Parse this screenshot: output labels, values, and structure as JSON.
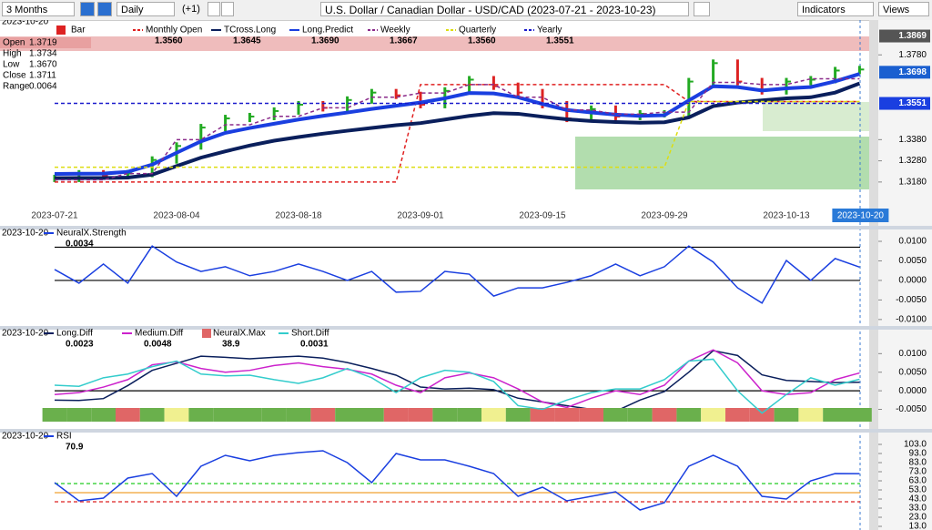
{
  "toolbar": {
    "period": "3 Months",
    "interval": "Daily",
    "step": "(+1)",
    "title": "U.S. Dollar / Canadian Dollar - USD/CAD (2023-07-21 - 2023-10-23)",
    "indicators": "Indicators",
    "views": "Views"
  },
  "chart_data": [
    {
      "type": "line",
      "date": "2023-10-20",
      "categories": [
        "2023-07-21",
        null,
        null,
        null,
        null,
        "2023-08-04",
        null,
        null,
        null,
        null,
        "2023-08-18",
        null,
        null,
        null,
        null,
        "2023-09-01",
        null,
        null,
        null,
        null,
        "2023-09-15",
        null,
        null,
        null,
        null,
        "2023-09-29",
        null,
        null,
        null,
        null,
        "2023-10-13",
        null,
        null,
        "2023-10-20"
      ],
      "info": [
        {
          "label": "Open",
          "value": "1.3719"
        },
        {
          "label": "High",
          "value": "1.3734"
        },
        {
          "label": "Low",
          "value": "1.3670"
        },
        {
          "label": "Close",
          "value": "1.3711"
        },
        {
          "label": "Range",
          "value": "0.0064"
        }
      ],
      "bars": {
        "name": "Bar",
        "up_color": "#22aa22",
        "down_color": "#dd2222",
        "values": [
          1.3197,
          1.3219,
          1.321,
          1.322,
          1.3284,
          1.335,
          1.3437,
          1.348,
          1.3489,
          1.3515,
          1.3545,
          1.353,
          1.3567,
          1.3602,
          1.3589,
          1.3545,
          1.361,
          1.3663,
          1.3632,
          1.3602,
          1.3545,
          1.348,
          1.3524,
          1.3489,
          1.3502,
          1.3502,
          1.3654,
          1.3741,
          1.3654,
          1.361,
          1.3654,
          1.3663,
          1.3706,
          1.3711
        ]
      },
      "series": [
        {
          "name": "Monthly Open",
          "label_value": "1.3560",
          "color": "#e02020",
          "dashed": true,
          "width": 1.5,
          "values": [
            1.318,
            1.318,
            1.318,
            1.318,
            1.318,
            1.318,
            1.318,
            1.318,
            1.318,
            1.318,
            1.318,
            1.318,
            1.318,
            1.318,
            1.318,
            1.364,
            1.364,
            1.364,
            1.364,
            1.364,
            1.364,
            1.364,
            1.364,
            1.364,
            1.364,
            1.364,
            1.356,
            1.356,
            1.356,
            1.356,
            1.356,
            1.356,
            1.356,
            1.356
          ]
        },
        {
          "name": "TCross.Long",
          "label_value": "1.3645",
          "color": "#0a1f5c",
          "dashed": false,
          "width": 4,
          "values": [
            1.3198,
            1.3199,
            1.3199,
            1.3201,
            1.3215,
            1.3255,
            1.3295,
            1.3325,
            1.3352,
            1.3375,
            1.3392,
            1.3408,
            1.3422,
            1.3435,
            1.3448,
            1.3458,
            1.3475,
            1.3492,
            1.3505,
            1.3502,
            1.3488,
            1.3476,
            1.3468,
            1.3463,
            1.346,
            1.3462,
            1.3485,
            1.3538,
            1.3555,
            1.3565,
            1.3575,
            1.358,
            1.3602,
            1.3645
          ]
        },
        {
          "name": "Long.Predict",
          "label_value": "1.3690",
          "color": "#1a3fe0",
          "dashed": false,
          "width": 4,
          "values": [
            1.3218,
            1.3219,
            1.322,
            1.3228,
            1.3262,
            1.3318,
            1.3372,
            1.3412,
            1.3435,
            1.3455,
            1.3475,
            1.3492,
            1.3508,
            1.3525,
            1.354,
            1.3555,
            1.3575,
            1.36,
            1.3598,
            1.358,
            1.3548,
            1.352,
            1.3508,
            1.3498,
            1.3492,
            1.3495,
            1.3565,
            1.3632,
            1.3628,
            1.3612,
            1.3622,
            1.3628,
            1.3655,
            1.369
          ]
        },
        {
          "name": "Weekly",
          "label_value": "1.3667",
          "color": "#8a2a8a",
          "dashed": true,
          "width": 1.5,
          "values": [
            1.319,
            1.319,
            1.319,
            1.322,
            1.322,
            1.338,
            1.338,
            1.345,
            1.345,
            1.349,
            1.349,
            1.353,
            1.353,
            1.358,
            1.358,
            1.36,
            1.36,
            1.364,
            1.364,
            1.358,
            1.358,
            1.352,
            1.352,
            1.35,
            1.35,
            1.351,
            1.351,
            1.365,
            1.365,
            1.364,
            1.364,
            1.3667,
            1.3667,
            1.3667
          ]
        },
        {
          "name": "Quarterly",
          "label_value": "1.3560",
          "color": "#dddd10",
          "dashed": true,
          "width": 1.5,
          "values": [
            1.325,
            1.325,
            1.325,
            1.325,
            1.325,
            1.325,
            1.325,
            1.325,
            1.325,
            1.325,
            1.325,
            1.325,
            1.325,
            1.325,
            1.325,
            1.325,
            1.325,
            1.325,
            1.325,
            1.325,
            1.325,
            1.325,
            1.325,
            1.325,
            1.325,
            1.325,
            1.356,
            1.356,
            1.356,
            1.356,
            1.356,
            1.356,
            1.356,
            1.356
          ]
        },
        {
          "name": "Yearly",
          "label_value": "1.3551",
          "color": "#1a1acc",
          "dashed": true,
          "width": 1.5,
          "values": [
            1.3551,
            1.3551,
            1.3551,
            1.3551,
            1.3551,
            1.3551,
            1.3551,
            1.3551,
            1.3551,
            1.3551,
            1.3551,
            1.3551,
            1.3551,
            1.3551,
            1.3551,
            1.3551,
            1.3551,
            1.3551,
            1.3551,
            1.3551,
            1.3551,
            1.3551,
            1.3551,
            1.3551,
            1.3551,
            1.3551,
            1.3551,
            1.3551,
            1.3551,
            1.3551,
            1.3551,
            1.3551,
            1.3551,
            1.3551
          ]
        }
      ],
      "ylim": [
        1.3115,
        1.391
      ],
      "yticks": [
        {
          "value": 1.318,
          "label": "1.3180"
        },
        {
          "value": 1.328,
          "label": "1.3280"
        },
        {
          "value": 1.338,
          "label": "1.3380"
        },
        {
          "value": 1.378,
          "label": "1.3780"
        }
      ],
      "price_labels": [
        {
          "value": 1.3869,
          "label": "1.3869",
          "color": "#555555"
        },
        {
          "value": 1.3698,
          "label": "1.3698",
          "color": "#1a5fd0"
        },
        {
          "value": 1.3551,
          "label": "1.3551",
          "color": "#1a3fe0"
        }
      ]
    },
    {
      "type": "line",
      "date": "2023-10-20",
      "series": [
        {
          "name": "NeuralX.Strength",
          "label_value": "0.0034",
          "color": "#1a3fe0",
          "width": 1.5,
          "values": [
            0.0028,
            -0.0007,
            0.0042,
            -0.0007,
            0.0088,
            0.0047,
            0.0023,
            0.0035,
            0.0012,
            0.0023,
            0.0042,
            0.0023,
            0,
            0.0023,
            -0.003,
            -0.0028,
            0.0023,
            0.0016,
            -0.004,
            -0.0019,
            -0.0019,
            -0.0005,
            0.0012,
            0.0042,
            0.0012,
            0.0035,
            0.0088,
            0.0047,
            -0.0019,
            -0.0058,
            0.0051,
            0,
            0.0056,
            0.0034
          ]
        }
      ],
      "levels": [
        {
          "value": 0.0085,
          "color": "#000000"
        },
        {
          "value": 0,
          "color": "#000000"
        }
      ],
      "ylim": [
        -0.0112,
        0.0107
      ],
      "yticks": [
        {
          "value": 0.01,
          "label": "0.0100"
        },
        {
          "value": 0.005,
          "label": "0.0050"
        },
        {
          "value": 0,
          "label": "0.0000"
        },
        {
          "value": -0.005,
          "label": "-0.0050"
        },
        {
          "value": -0.01,
          "label": "-0.0100"
        }
      ]
    },
    {
      "type": "line",
      "date": "2023-10-20",
      "series": [
        {
          "name": "Long.Diff",
          "label_value": "0.0023",
          "color": "#0a1f5c",
          "width": 1.5,
          "values": [
            -0.0025,
            -0.0026,
            -0.0021,
            0.0014,
            0.0055,
            0.0074,
            0.0093,
            0.009,
            0.0086,
            0.009,
            0.0093,
            0.0088,
            0.0076,
            0.006,
            0.0042,
            0.001,
            0.0005,
            0.0007,
            0.0003,
            -0.002,
            -0.003,
            -0.004,
            -0.005,
            -0.0055,
            -0.0025,
            -0.0002,
            0.005,
            0.0108,
            0.0095,
            0.0043,
            0.0028,
            0.0025,
            0.0022,
            0.0023
          ]
        },
        {
          "name": "Medium.Diff",
          "label_value": "0.0048",
          "color": "#cc22cc",
          "width": 1.5,
          "values": [
            -0.001,
            -0.0005,
            0.001,
            0.003,
            0.007,
            0.0078,
            0.006,
            0.005,
            0.0055,
            0.0068,
            0.0075,
            0.0065,
            0.0058,
            0.0045,
            0.0015,
            -0.0005,
            0.0035,
            0.0048,
            0.0035,
            0.0005,
            -0.003,
            -0.0045,
            -0.002,
            0,
            -0.001,
            0.0015,
            0.008,
            0.011,
            0.0075,
            0,
            -0.001,
            -0.0005,
            0.003,
            0.0048
          ]
        },
        {
          "name": "NeuralX.Max",
          "label_value": "38.9",
          "strip_colors": [
            "#6ab04c",
            "#6ab04c",
            "#6ab04c",
            "#e06666",
            "#6ab04c",
            "#f0f090",
            "#6ab04c",
            "#6ab04c",
            "#6ab04c",
            "#6ab04c",
            "#6ab04c",
            "#e06666",
            "#6ab04c",
            "#6ab04c",
            "#e06666",
            "#e06666",
            "#6ab04c",
            "#6ab04c",
            "#f0f090",
            "#6ab04c",
            "#e06666",
            "#e06666",
            "#e06666",
            "#6ab04c",
            "#6ab04c",
            "#e06666",
            "#6ab04c",
            "#f0f090",
            "#e06666",
            "#e06666",
            "#6ab04c",
            "#f0f090",
            "#6ab04c",
            "#6ab04c"
          ]
        },
        {
          "name": "Short.Diff",
          "label_value": "0.0031",
          "color": "#33cccc",
          "width": 1.5,
          "values": [
            0.0015,
            0.0012,
            0.0035,
            0.0045,
            0.0065,
            0.008,
            0.0045,
            0.004,
            0.0042,
            0.003,
            0.002,
            0.0035,
            0.006,
            0.0035,
            -0.0005,
            0.0035,
            0.0055,
            0.005,
            0.0025,
            -0.004,
            -0.005,
            -0.0025,
            -0.0005,
            0.0005,
            0.0005,
            0.003,
            0.008,
            0.0085,
            0,
            -0.006,
            -0.001,
            0.0035,
            0.0015,
            0.0031
          ]
        }
      ],
      "levels": [
        {
          "value": 0,
          "color": "#000000"
        }
      ],
      "ylim": [
        -0.0083,
        0.014
      ],
      "yticks": [
        {
          "value": 0.01,
          "label": "0.0100"
        },
        {
          "value": 0.005,
          "label": "0.0050"
        },
        {
          "value": 0,
          "label": "0.0000"
        },
        {
          "value": -0.005,
          "label": "-0.0050"
        }
      ]
    },
    {
      "type": "line",
      "date": "2023-10-20",
      "series": [
        {
          "name": "RSI",
          "label_value": "70.9",
          "color": "#1a3fe0",
          "width": 1.5,
          "values": [
            61,
            41,
            44,
            66,
            71,
            46,
            79,
            91,
            85,
            91,
            94,
            96,
            83,
            61,
            93,
            86,
            86,
            79,
            71,
            46,
            56,
            41,
            46,
            51,
            31,
            39,
            79,
            91,
            79,
            46,
            43,
            63,
            71,
            70.9
          ]
        }
      ],
      "levels": [
        {
          "value": 60,
          "color": "#22cc22"
        },
        {
          "value": 50,
          "color": "#f0a030"
        },
        {
          "value": 40,
          "color": "#dd2222"
        }
      ],
      "ylim": [
        11,
        106
      ],
      "yticks": [
        {
          "value": 103,
          "label": "103.0"
        },
        {
          "value": 93,
          "label": "93.0"
        },
        {
          "value": 83,
          "label": "83.0"
        },
        {
          "value": 73,
          "label": "73.0"
        },
        {
          "value": 63,
          "label": "63.0"
        },
        {
          "value": 53,
          "label": "53.0"
        },
        {
          "value": 43,
          "label": "43.0"
        },
        {
          "value": 33,
          "label": "33.0"
        },
        {
          "value": 23,
          "label": "23.0"
        },
        {
          "value": 13,
          "label": "13.0"
        }
      ]
    }
  ]
}
